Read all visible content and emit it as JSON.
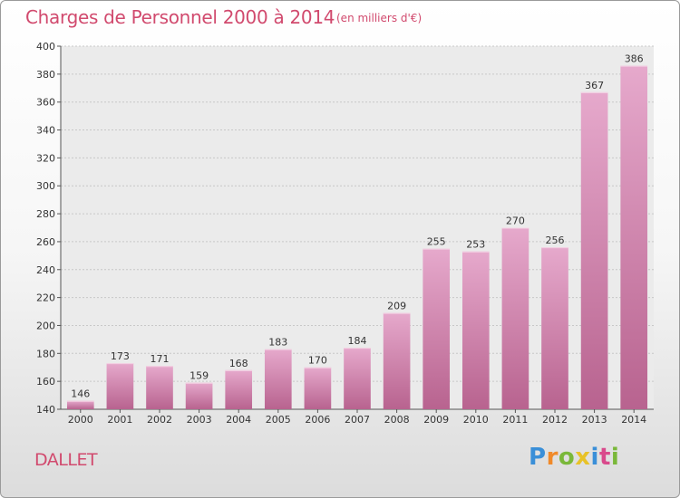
{
  "title": "Charges de Personnel 2000 à 2014",
  "subtitle": "(en milliers d'€)",
  "place_name": "DALLET",
  "logo": {
    "letters": [
      "P",
      "r",
      "o",
      "x",
      "i",
      "t",
      "i"
    ],
    "colors": [
      "#3a8fd8",
      "#f08a2a",
      "#7ab83a",
      "#e8c228",
      "#3a8fd8",
      "#d94a8c",
      "#7ab83a"
    ]
  },
  "colors": {
    "bar_light": "#e6a9cc",
    "bar_dark": "#b8638f",
    "text_accent": "#d14a6e"
  },
  "chart_data": {
    "type": "bar",
    "title": "Charges de Personnel 2000 à 2014",
    "subtitle": "(en milliers d'€)",
    "categories": [
      "2000",
      "2001",
      "2002",
      "2003",
      "2004",
      "2005",
      "2006",
      "2007",
      "2008",
      "2009",
      "2010",
      "2011",
      "2012",
      "2013",
      "2014"
    ],
    "values": [
      146,
      173,
      171,
      159,
      168,
      183,
      170,
      184,
      209,
      255,
      253,
      270,
      256,
      367,
      386
    ],
    "ylim": [
      140,
      400
    ],
    "yticks": [
      140,
      160,
      180,
      200,
      220,
      240,
      260,
      280,
      300,
      320,
      340,
      360,
      380,
      400
    ],
    "grid": true,
    "legend": "none"
  }
}
